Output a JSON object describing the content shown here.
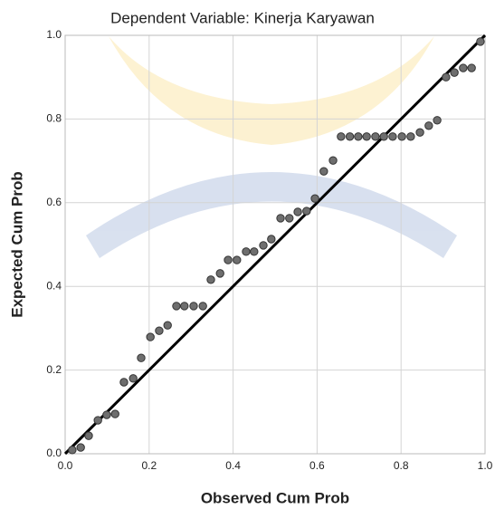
{
  "chart_data": {
    "type": "scatter",
    "title": "Dependent Variable: Kinerja Karyawan",
    "x_label": "Observed Cum Prob",
    "y_label": "Expected Cum Prob",
    "x": [
      0.017,
      0.037,
      0.056,
      0.078,
      0.099,
      0.119,
      0.14,
      0.162,
      0.181,
      0.203,
      0.224,
      0.244,
      0.265,
      0.284,
      0.306,
      0.328,
      0.347,
      0.369,
      0.388,
      0.409,
      0.431,
      0.45,
      0.472,
      0.491,
      0.513,
      0.534,
      0.554,
      0.575,
      0.595,
      0.616,
      0.638,
      0.657,
      0.678,
      0.698,
      0.718,
      0.739,
      0.759,
      0.78,
      0.802,
      0.823,
      0.845,
      0.866,
      0.886,
      0.907,
      0.927,
      0.948,
      0.968,
      0.989
    ],
    "values": [
      0.009,
      0.015,
      0.043,
      0.08,
      0.093,
      0.095,
      0.171,
      0.18,
      0.229,
      0.279,
      0.294,
      0.307,
      0.353,
      0.353,
      0.353,
      0.353,
      0.416,
      0.431,
      0.463,
      0.463,
      0.483,
      0.483,
      0.498,
      0.513,
      0.563,
      0.563,
      0.578,
      0.58,
      0.61,
      0.675,
      0.701,
      0.758,
      0.758,
      0.758,
      0.758,
      0.758,
      0.758,
      0.758,
      0.758,
      0.758,
      0.768,
      0.784,
      0.797,
      0.9,
      0.911,
      0.922,
      0.922,
      0.985
    ],
    "color": "#6e6e6e",
    "xlim": [
      0,
      1
    ],
    "ylim": [
      0,
      1
    ],
    "xticks": [
      {
        "value": 0,
        "label": "0.0"
      },
      0.2,
      0.4,
      0.6,
      0.8,
      {
        "value": 1,
        "label": "1.0"
      }
    ],
    "yticks": [
      {
        "value": 0,
        "label": "0.0"
      },
      0.2,
      0.4,
      0.6,
      0.8,
      {
        "value": 1,
        "label": "1.0"
      }
    ],
    "grid": true,
    "reference_line": true
  }
}
